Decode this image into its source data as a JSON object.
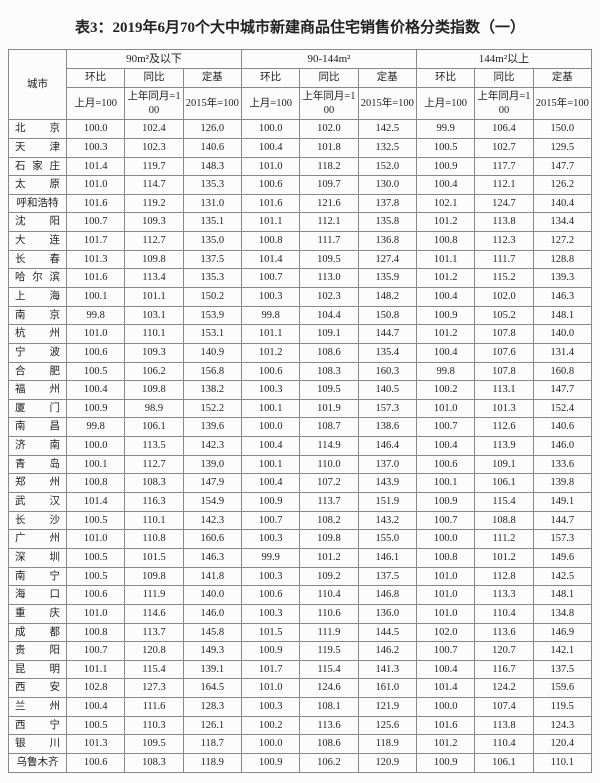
{
  "title": "表3：2019年6月70个大中城市新建商品住宅销售价格分类指数（一）",
  "header": {
    "city": "城市",
    "groups": [
      "90m²及以下",
      "90-144m²",
      "144m²以上"
    ],
    "sub": {
      "hb": "环比",
      "tb": "同比",
      "dj": "定基",
      "mom": "上月=100",
      "yoy": "上年同月=1\n00",
      "base": "2015年=100"
    }
  },
  "rows": [
    {
      "city": "北京",
      "v": [
        "100.0",
        "102.4",
        "126.0",
        "100.0",
        "102.0",
        "142.5",
        "99.9",
        "106.4",
        "150.0"
      ]
    },
    {
      "city": "天津",
      "v": [
        "100.3",
        "102.3",
        "140.6",
        "100.4",
        "101.8",
        "132.5",
        "100.5",
        "102.7",
        "129.5"
      ]
    },
    {
      "city": "石家庄",
      "v": [
        "101.4",
        "119.7",
        "148.3",
        "101.0",
        "118.2",
        "152.0",
        "100.9",
        "117.7",
        "147.7"
      ]
    },
    {
      "city": "太原",
      "v": [
        "101.0",
        "114.7",
        "135.3",
        "100.6",
        "109.7",
        "130.0",
        "100.4",
        "112.1",
        "126.2"
      ]
    },
    {
      "city": "呼和浩特",
      "v": [
        "101.6",
        "119.2",
        "131.0",
        "101.6",
        "121.6",
        "137.8",
        "102.1",
        "124.7",
        "140.4"
      ]
    },
    {
      "city": "沈阳",
      "v": [
        "100.7",
        "109.3",
        "135.1",
        "101.1",
        "112.1",
        "135.8",
        "101.2",
        "113.8",
        "134.4"
      ]
    },
    {
      "city": "大连",
      "v": [
        "101.7",
        "112.7",
        "135.0",
        "100.8",
        "111.7",
        "136.8",
        "100.8",
        "112.3",
        "127.2"
      ]
    },
    {
      "city": "长春",
      "v": [
        "101.3",
        "109.8",
        "137.5",
        "101.4",
        "109.5",
        "127.4",
        "101.1",
        "111.7",
        "128.8"
      ]
    },
    {
      "city": "哈尔滨",
      "v": [
        "101.6",
        "113.4",
        "135.3",
        "100.7",
        "113.0",
        "135.9",
        "101.2",
        "115.2",
        "139.3"
      ]
    },
    {
      "city": "上海",
      "v": [
        "100.1",
        "101.1",
        "150.2",
        "100.3",
        "102.3",
        "148.2",
        "100.4",
        "102.0",
        "146.3"
      ]
    },
    {
      "city": "南京",
      "v": [
        "99.8",
        "103.1",
        "153.9",
        "99.8",
        "104.4",
        "150.8",
        "100.9",
        "105.2",
        "148.1"
      ]
    },
    {
      "city": "杭州",
      "v": [
        "101.0",
        "110.1",
        "153.1",
        "101.1",
        "109.1",
        "144.7",
        "101.2",
        "107.8",
        "140.0"
      ]
    },
    {
      "city": "宁波",
      "v": [
        "100.6",
        "109.3",
        "140.9",
        "101.2",
        "108.6",
        "135.4",
        "100.4",
        "107.6",
        "131.4"
      ]
    },
    {
      "city": "合肥",
      "v": [
        "100.5",
        "106.2",
        "156.8",
        "100.6",
        "108.3",
        "160.3",
        "99.8",
        "107.8",
        "160.8"
      ]
    },
    {
      "city": "福州",
      "v": [
        "100.4",
        "109.8",
        "138.2",
        "100.3",
        "109.5",
        "140.5",
        "100.2",
        "113.1",
        "147.7"
      ]
    },
    {
      "city": "厦门",
      "v": [
        "100.9",
        "98.9",
        "152.2",
        "100.1",
        "101.9",
        "157.3",
        "101.0",
        "101.3",
        "152.4"
      ]
    },
    {
      "city": "南昌",
      "v": [
        "99.8",
        "106.1",
        "139.6",
        "100.0",
        "108.7",
        "138.6",
        "100.7",
        "112.6",
        "140.6"
      ]
    },
    {
      "city": "济南",
      "v": [
        "100.0",
        "113.5",
        "142.3",
        "100.4",
        "114.9",
        "146.4",
        "100.4",
        "113.9",
        "146.0"
      ]
    },
    {
      "city": "青岛",
      "v": [
        "100.1",
        "112.7",
        "139.0",
        "100.1",
        "110.0",
        "137.0",
        "100.6",
        "109.1",
        "133.6"
      ]
    },
    {
      "city": "郑州",
      "v": [
        "100.8",
        "108.3",
        "147.9",
        "100.4",
        "107.2",
        "143.9",
        "100.1",
        "106.1",
        "139.8"
      ]
    },
    {
      "city": "武汉",
      "v": [
        "101.4",
        "116.3",
        "154.9",
        "100.9",
        "113.7",
        "151.9",
        "100.9",
        "115.4",
        "149.1"
      ]
    },
    {
      "city": "长沙",
      "v": [
        "100.5",
        "110.1",
        "142.3",
        "100.7",
        "108.2",
        "143.2",
        "100.7",
        "108.8",
        "144.7"
      ]
    },
    {
      "city": "广州",
      "v": [
        "101.0",
        "110.8",
        "160.6",
        "100.3",
        "109.8",
        "155.0",
        "100.0",
        "111.2",
        "157.3"
      ]
    },
    {
      "city": "深圳",
      "v": [
        "100.5",
        "101.5",
        "146.3",
        "99.9",
        "101.2",
        "146.1",
        "100.8",
        "101.2",
        "149.6"
      ]
    },
    {
      "city": "南宁",
      "v": [
        "100.5",
        "109.8",
        "141.8",
        "100.3",
        "109.2",
        "137.5",
        "101.0",
        "112.8",
        "142.5"
      ]
    },
    {
      "city": "海口",
      "v": [
        "100.6",
        "111.9",
        "140.0",
        "100.6",
        "110.4",
        "146.8",
        "101.0",
        "113.3",
        "148.1"
      ]
    },
    {
      "city": "重庆",
      "v": [
        "101.0",
        "114.6",
        "146.0",
        "100.3",
        "110.6",
        "136.0",
        "101.0",
        "110.4",
        "134.8"
      ]
    },
    {
      "city": "成都",
      "v": [
        "100.8",
        "113.7",
        "145.8",
        "101.5",
        "111.9",
        "144.5",
        "102.0",
        "113.6",
        "146.9"
      ]
    },
    {
      "city": "贵阳",
      "v": [
        "100.7",
        "120.8",
        "149.3",
        "100.9",
        "119.5",
        "146.2",
        "100.7",
        "120.7",
        "142.1"
      ]
    },
    {
      "city": "昆明",
      "v": [
        "101.1",
        "115.4",
        "139.1",
        "101.7",
        "115.4",
        "141.3",
        "100.4",
        "116.7",
        "137.5"
      ]
    },
    {
      "city": "西安",
      "v": [
        "102.8",
        "127.3",
        "164.5",
        "101.0",
        "124.6",
        "161.0",
        "101.4",
        "124.2",
        "159.6"
      ]
    },
    {
      "city": "兰州",
      "v": [
        "100.4",
        "111.6",
        "128.3",
        "100.3",
        "108.1",
        "121.9",
        "100.0",
        "107.4",
        "119.5"
      ]
    },
    {
      "city": "西宁",
      "v": [
        "100.5",
        "110.3",
        "126.1",
        "100.2",
        "113.6",
        "125.6",
        "101.6",
        "113.8",
        "124.3"
      ]
    },
    {
      "city": "银川",
      "v": [
        "101.3",
        "109.5",
        "118.7",
        "100.0",
        "108.6",
        "118.9",
        "101.2",
        "110.4",
        "120.4"
      ]
    },
    {
      "city": "乌鲁木齐",
      "v": [
        "100.6",
        "108.3",
        "118.9",
        "100.9",
        "106.2",
        "120.9",
        "100.9",
        "106.1",
        "110.1"
      ]
    }
  ]
}
